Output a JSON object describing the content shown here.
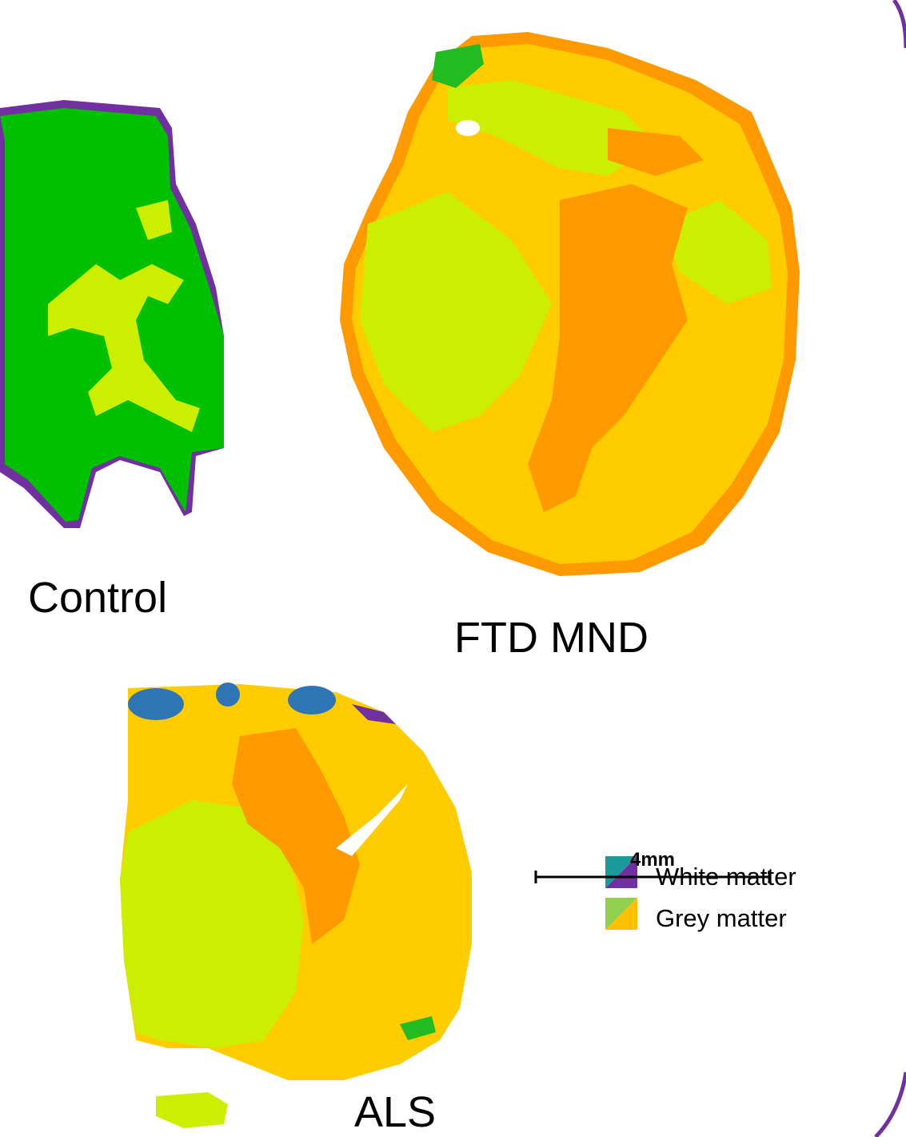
{
  "labels": {
    "control": "Control",
    "ftd_mnd": "FTD MND",
    "als": "ALS"
  },
  "legend": [
    {
      "label": "White matter"
    },
    {
      "label": "Grey matter"
    }
  ],
  "scale_bar": {
    "label": "4mm"
  }
}
